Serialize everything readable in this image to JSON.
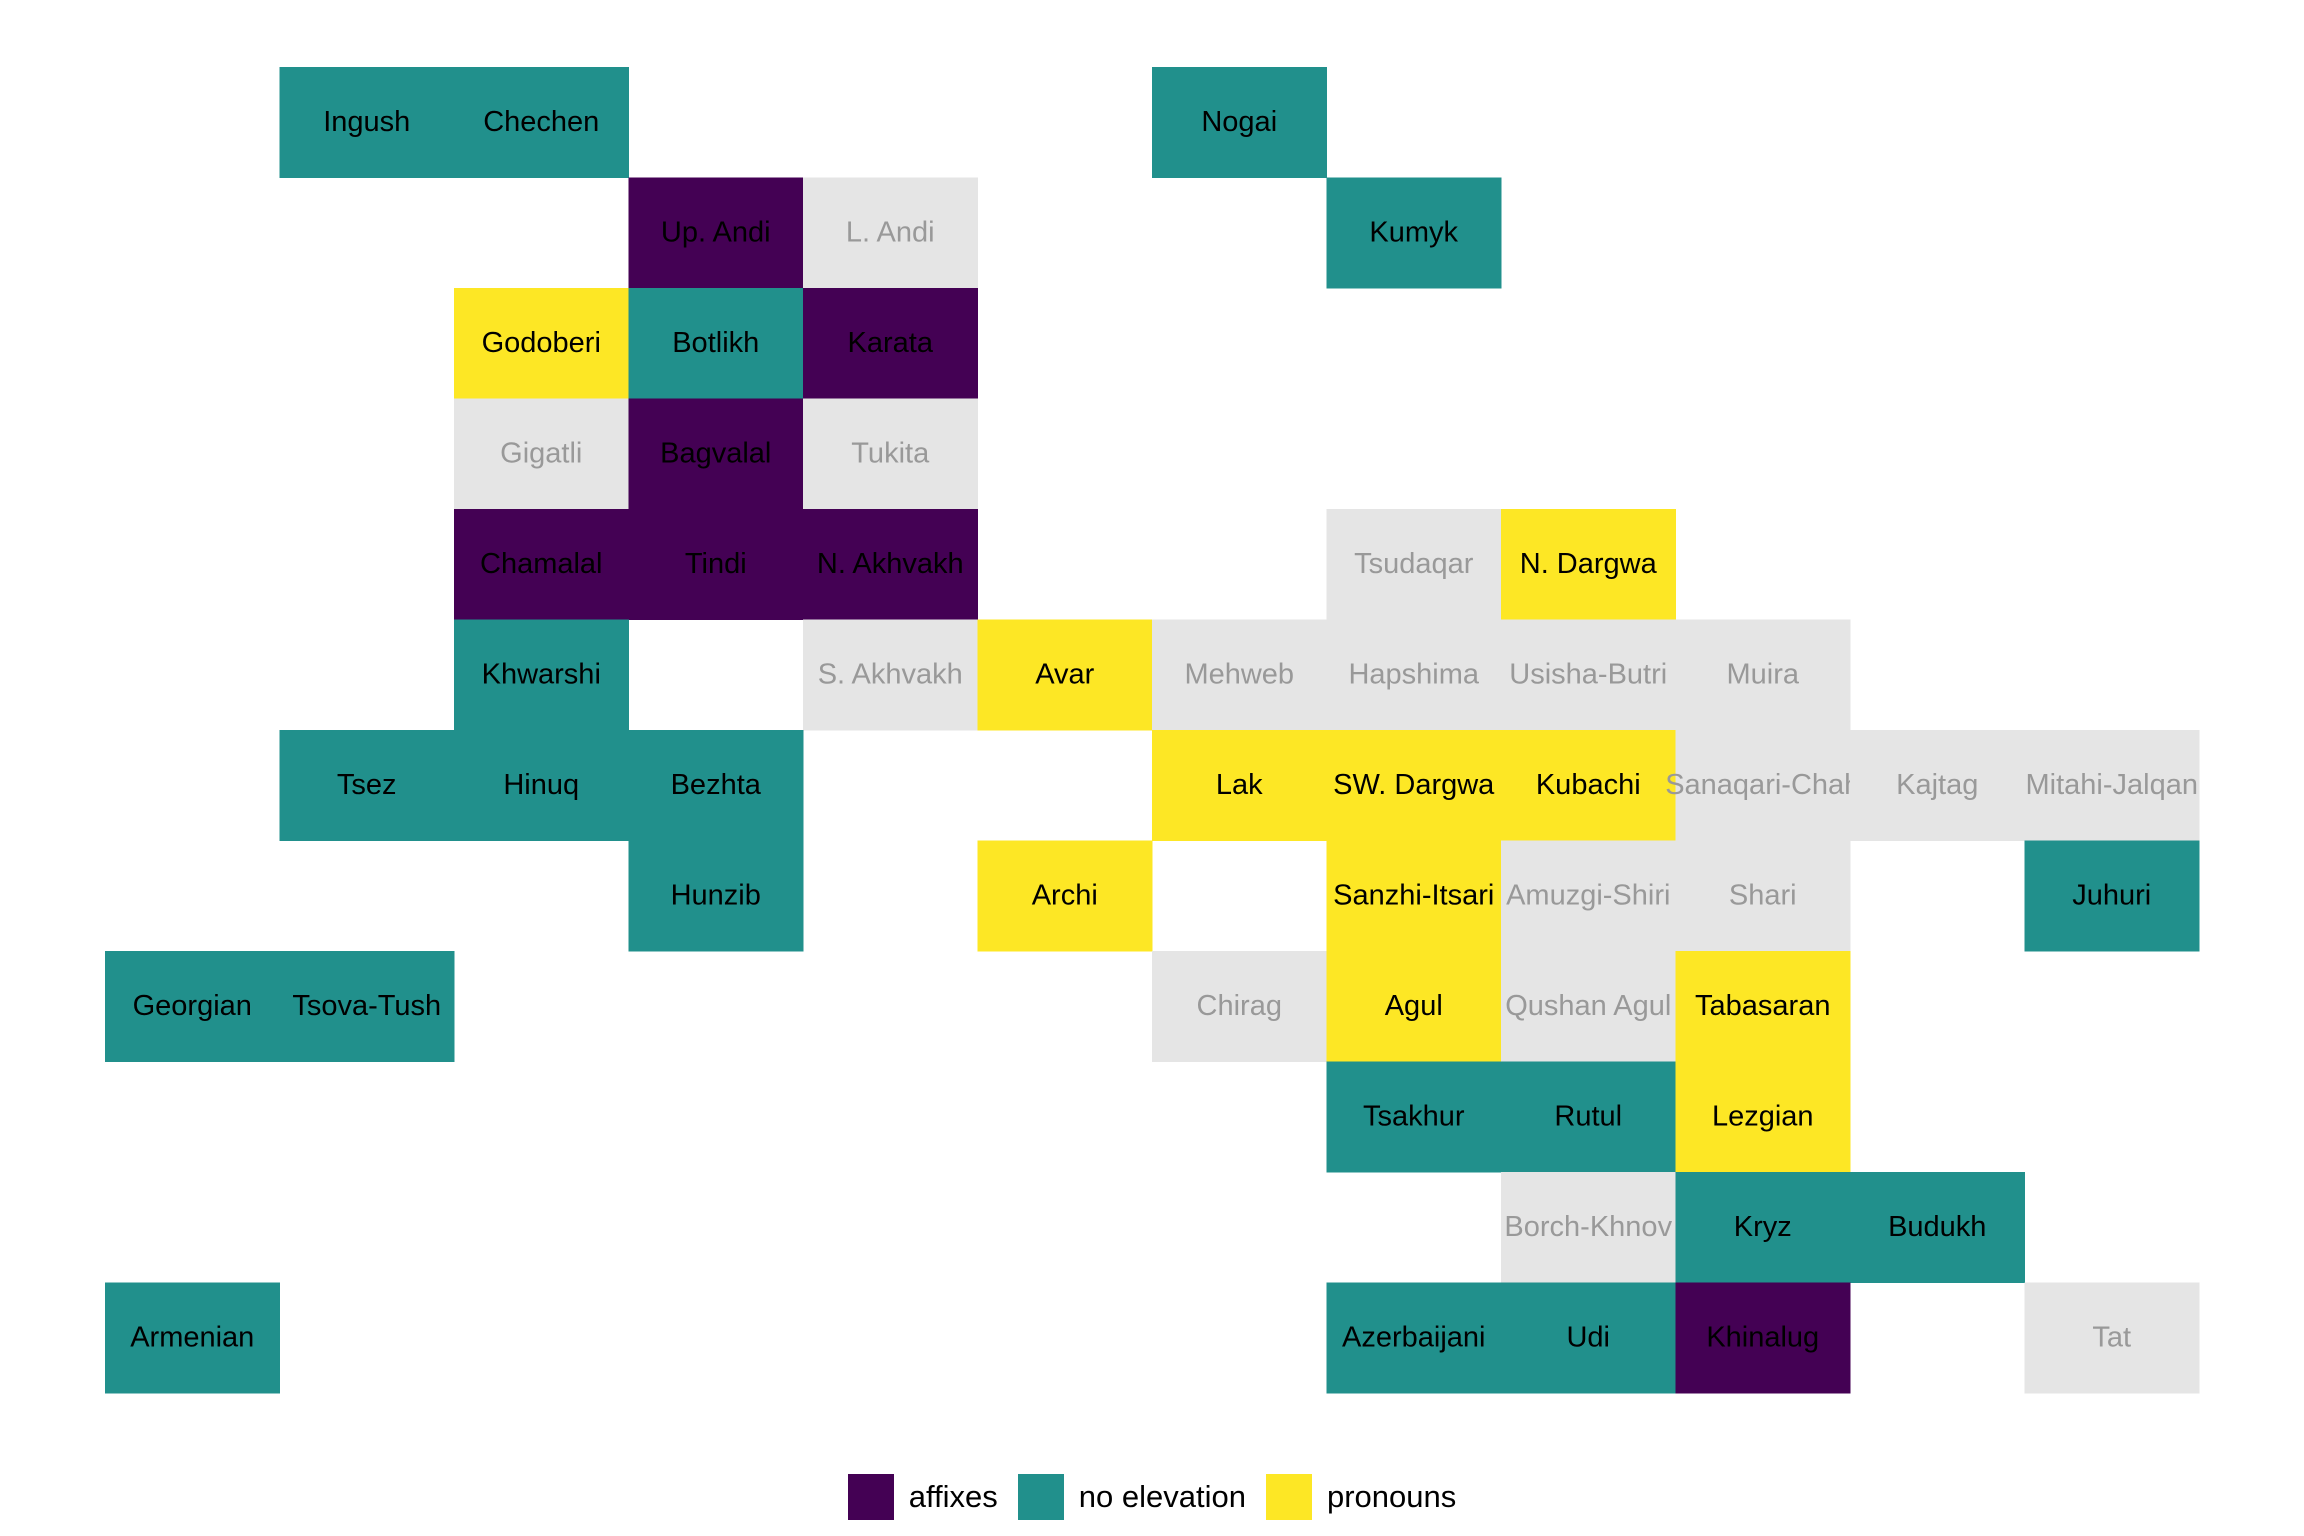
{
  "tiles": [
    {
      "label": "Ingush",
      "group": 1
    },
    {
      "label": "Chechen",
      "group": 1
    },
    {
      "label": "Nogai",
      "group": 1
    },
    {
      "label": "Up. Andi",
      "group": 0
    },
    {
      "label": "L. Andi",
      "group": null
    },
    {
      "label": "Kumyk",
      "group": 1
    },
    {
      "label": "Godoberi",
      "group": 2
    },
    {
      "label": "Botlikh",
      "group": 1
    },
    {
      "label": "Karata",
      "group": 0
    },
    {
      "label": "Gigatli",
      "group": null
    },
    {
      "label": "Bagvalal",
      "group": 0
    },
    {
      "label": "Tukita",
      "group": null
    },
    {
      "label": "Chamalal",
      "group": 0
    },
    {
      "label": "Tindi",
      "group": 0
    },
    {
      "label": "N. Akhvakh",
      "group": 0
    },
    {
      "label": "Tsudaqar",
      "group": null
    },
    {
      "label": "N. Dargwa",
      "group": 2
    },
    {
      "label": "Khwarshi",
      "group": 1
    },
    {
      "label": "S. Akhvakh",
      "group": null
    },
    {
      "label": "Avar",
      "group": 2
    },
    {
      "label": "Mehweb",
      "group": null
    },
    {
      "label": "Hapshima",
      "group": null
    },
    {
      "label": "Usisha-Butri",
      "group": null
    },
    {
      "label": "Muira",
      "group": null
    },
    {
      "label": "Tsez",
      "group": 1
    },
    {
      "label": "Hinuq",
      "group": 1
    },
    {
      "label": "Bezhta",
      "group": 1
    },
    {
      "label": "Lak",
      "group": 2
    },
    {
      "label": "SW. Dargwa",
      "group": 2
    },
    {
      "label": "Kubachi",
      "group": 2
    },
    {
      "label": "Sanaqari-Chah",
      "group": null
    },
    {
      "label": "Kajtag",
      "group": null
    },
    {
      "label": "Mitahi-Jalqan",
      "group": null
    },
    {
      "label": "Hunzib",
      "group": 1
    },
    {
      "label": "Archi",
      "group": 2
    },
    {
      "label": "Sanzhi-Itsari",
      "group": 2
    },
    {
      "label": "Amuzgi-Shiri",
      "group": null
    },
    {
      "label": "Shari",
      "group": null
    },
    {
      "label": "Juhuri",
      "group": 1
    },
    {
      "label": "Georgian",
      "group": 1
    },
    {
      "label": "Tsova-Tush",
      "group": 1
    },
    {
      "label": "Chirag",
      "group": null
    },
    {
      "label": "Agul",
      "group": 2
    },
    {
      "label": "Qushan Agul",
      "group": null
    },
    {
      "label": "Tabasaran",
      "group": 2
    },
    {
      "label": "Tsakhur",
      "group": 1
    },
    {
      "label": "Rutul",
      "group": 1
    },
    {
      "label": "Lezgian",
      "group": 2
    },
    {
      "label": "Borch-Khnov",
      "group": null
    },
    {
      "label": "Kryz",
      "group": 1
    },
    {
      "label": "Budukh",
      "group": 1
    },
    {
      "label": "Armenian",
      "group": 1
    },
    {
      "label": "Azerbaijani",
      "group": 1
    },
    {
      "label": "Udi",
      "group": 1
    },
    {
      "label": "Khinalug",
      "group": 0
    },
    {
      "label": "Tat",
      "group": null
    }
  ],
  "missing_color": "#e5e5e5",
  "legend": [
    {
      "name": "affixes",
      "color": "#440154"
    },
    {
      "name": "no elevation",
      "color": "#21908c"
    },
    {
      "name": "pronouns",
      "color": "#fde725"
    }
  ]
}
